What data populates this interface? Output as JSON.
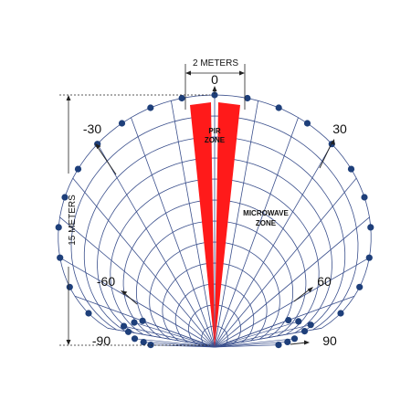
{
  "diagram": {
    "width_label": "2 METERS",
    "height_label": "15 METERS",
    "pir_zone_label": [
      "PIR",
      "ZONE"
    ],
    "microwave_zone_label": [
      "MICROWAVE",
      "ZONE"
    ],
    "angle_labels": {
      "top": "0",
      "left_30": "-30",
      "right_30": "30",
      "left_60": "-60",
      "right_60": "60",
      "left_90": "-90",
      "right_90": "90"
    },
    "colors": {
      "grid": "#3a4f8c",
      "dots": "#1e3f7a",
      "pir": "#ff1a1a",
      "text": "#111111",
      "dimension": "#222222"
    }
  }
}
